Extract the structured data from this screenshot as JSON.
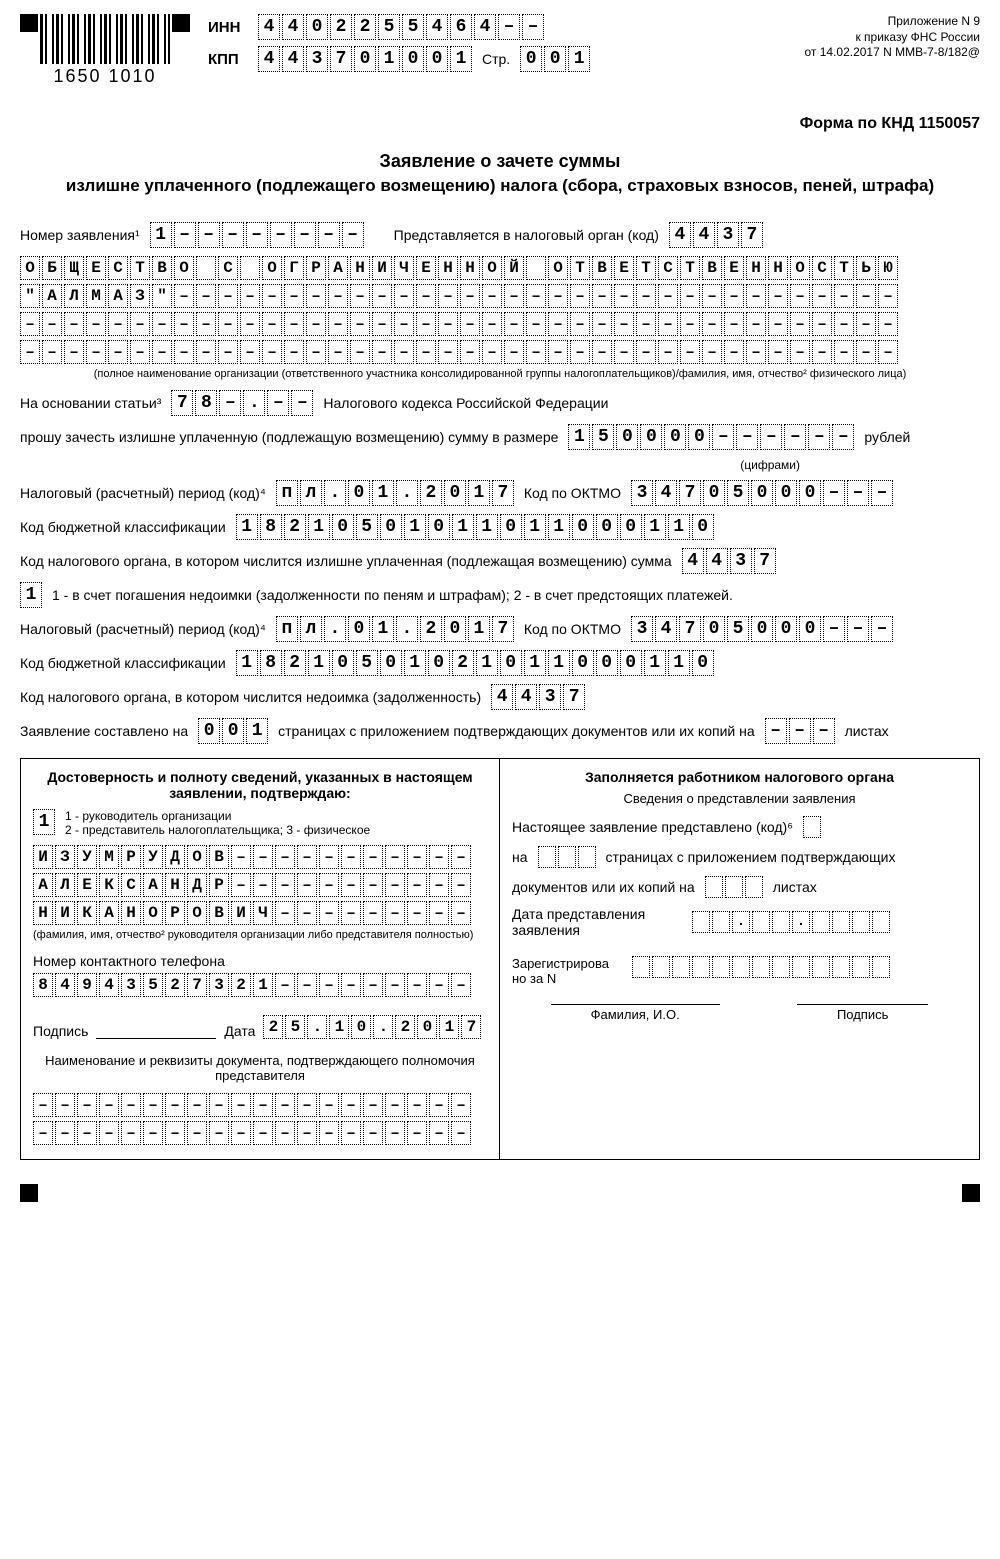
{
  "barcode_numbers": "1650  1010",
  "inn_label": "ИНН",
  "inn": [
    "4",
    "4",
    "0",
    "2",
    "2",
    "5",
    "5",
    "4",
    "6",
    "4",
    "–",
    "–"
  ],
  "kpp_label": "КПП",
  "kpp": [
    "4",
    "4",
    "3",
    "7",
    "0",
    "1",
    "0",
    "0",
    "1"
  ],
  "page_label": "Стр.",
  "page": [
    "0",
    "0",
    "1"
  ],
  "attachment_line1": "Приложение N 9",
  "attachment_line2": "к приказу ФНС России",
  "attachment_line3": "от 14.02.2017 N ММВ-7-8/182@",
  "form_code": "Форма по КНД 1150057",
  "title1": "Заявление о зачете суммы",
  "title2": "излишне уплаченного (подлежащего возмещению) налога (сбора, страховых взносов, пеней, штрафа)",
  "app_num_label": "Номер заявления¹",
  "app_num": [
    "1",
    "–",
    "–",
    "–",
    "–",
    "–",
    "–",
    "–",
    "–"
  ],
  "tax_organ_label": "Представляется в налоговый орган (код)",
  "tax_organ": [
    "4",
    "4",
    "3",
    "7"
  ],
  "org_name_1": [
    "О",
    "Б",
    "Щ",
    "Е",
    "С",
    "Т",
    "В",
    "О",
    " ",
    "С",
    " ",
    "О",
    "Г",
    "Р",
    "А",
    "Н",
    "И",
    "Ч",
    "Е",
    "Н",
    "Н",
    "О",
    "Й",
    " ",
    "О",
    "Т",
    "В",
    "Е",
    "Т",
    "С",
    "Т",
    "В",
    "Е",
    "Н",
    "Н",
    "О",
    "С",
    "Т",
    "Ь",
    "Ю"
  ],
  "org_name_2": [
    "\"",
    "А",
    "Л",
    "М",
    "А",
    "З",
    "\"",
    "–",
    "–",
    "–",
    "–",
    "–",
    "–",
    "–",
    "–",
    "–",
    "–",
    "–",
    "–",
    "–",
    "–",
    "–",
    "–",
    "–",
    "–",
    "–",
    "–",
    "–",
    "–",
    "–",
    "–",
    "–",
    "–",
    "–",
    "–",
    "–",
    "–",
    "–",
    "–",
    "–"
  ],
  "org_name_3_dashes": 40,
  "org_name_4_dashes": 40,
  "org_note": "(полное наименование организации (ответственного участника консолидированной группы налогоплательщиков)/фамилия, имя, отчество² физического лица)",
  "article_label": "На основании статьи³",
  "article": [
    "7",
    "8",
    "–",
    ".",
    "–",
    "–"
  ],
  "article_suffix": "Налогового кодекса Российской Федерации",
  "request_label": "прошу зачесть излишне уплаченную (подлежащую возмещению) сумму в размере",
  "amount": [
    "1",
    "5",
    "0",
    "0",
    "0",
    "0",
    "–",
    "–",
    "–",
    "–",
    "–",
    "–"
  ],
  "rubles": "рублей",
  "digits_note": "(цифрами)",
  "period_label": "Налоговый (расчетный) период (код)⁴",
  "period1": [
    "п",
    "л",
    ".",
    "0",
    "1",
    ".",
    "2",
    "0",
    "1",
    "7"
  ],
  "oktmo_label": "Код по ОКТМО",
  "oktmo1": [
    "3",
    "4",
    "7",
    "0",
    "5",
    "0",
    "0",
    "0",
    "–",
    "–",
    "–"
  ],
  "kbk_label": "Код бюджетной классификации",
  "kbk1": [
    "1",
    "8",
    "2",
    "1",
    "0",
    "5",
    "0",
    "1",
    "0",
    "1",
    "1",
    "0",
    "1",
    "1",
    "0",
    "0",
    "0",
    "1",
    "1",
    "0"
  ],
  "organ_overpay_label": "Код налогового органа, в котором числится излишне уплаченная (подлежащая возмещению) сумма",
  "organ_overpay": [
    "4",
    "4",
    "3",
    "7"
  ],
  "purpose_code": [
    "1"
  ],
  "purpose_text": "1 - в счет погашения недоимки (задолженности по пеням и штрафам);   2 - в счет предстоящих платежей.",
  "period2": [
    "п",
    "л",
    ".",
    "0",
    "1",
    ".",
    "2",
    "0",
    "1",
    "7"
  ],
  "oktmo2": [
    "3",
    "4",
    "7",
    "0",
    "5",
    "0",
    "0",
    "0",
    "–",
    "–",
    "–"
  ],
  "kbk2": [
    "1",
    "8",
    "2",
    "1",
    "0",
    "5",
    "0",
    "1",
    "0",
    "2",
    "1",
    "0",
    "1",
    "1",
    "0",
    "0",
    "0",
    "1",
    "1",
    "0"
  ],
  "organ_debt_label": "Код налогового органа, в котором числится недоимка (задолженность)",
  "organ_debt": [
    "4",
    "4",
    "3",
    "7"
  ],
  "pages_label_a": "Заявление составлено на",
  "pages": [
    "0",
    "0",
    "1"
  ],
  "pages_label_b": "страницах с приложением подтверждающих документов или их копий на",
  "sheets": [
    "–",
    "–",
    "–"
  ],
  "sheets_suffix": "листах",
  "left_heading": "Достоверность и полноту сведений, указанных в настоящем заявлении, подтверждаю:",
  "confirm_code": [
    "1"
  ],
  "confirm_legend": "1 - руководитель организации\n2 - представитель налогоплательщика; 3 - физическое",
  "fio1": [
    "И",
    "З",
    "У",
    "М",
    "Р",
    "У",
    "Д",
    "О",
    "В",
    "–",
    "–",
    "–",
    "–",
    "–",
    "–",
    "–",
    "–",
    "–",
    "–",
    "–"
  ],
  "fio2": [
    "А",
    "Л",
    "Е",
    "К",
    "С",
    "А",
    "Н",
    "Д",
    "Р",
    "–",
    "–",
    "–",
    "–",
    "–",
    "–",
    "–",
    "–",
    "–",
    "–",
    "–"
  ],
  "fio3": [
    "Н",
    "И",
    "К",
    "А",
    "Н",
    "О",
    "Р",
    "О",
    "В",
    "И",
    "Ч",
    "–",
    "–",
    "–",
    "–",
    "–",
    "–",
    "–",
    "–",
    "–"
  ],
  "fio_note": "(фамилия, имя, отчество² руководителя организации либо представителя полностью)",
  "phone_label": "Номер контактного телефона",
  "phone": [
    "8",
    "4",
    "9",
    "4",
    "3",
    "5",
    "2",
    "7",
    "3",
    "2",
    "1",
    "–",
    "–",
    "–",
    "–",
    "–",
    "–",
    "–",
    "–",
    "–"
  ],
  "sign_label": "Подпись",
  "date_label": "Дата",
  "date": [
    "2",
    "5",
    ".",
    "1",
    "0",
    ".",
    "2",
    "0",
    "1",
    "7"
  ],
  "doc_proof_h": "Наименование и реквизиты документа, подтверждающего полномочия представителя",
  "doc_proof_dashes": 20,
  "right_heading": "Заполняется работником налогового органа",
  "right_sub": "Сведения о представлении заявления",
  "right_present_label": "Настоящее заявление представлено (код)⁶",
  "right_present": [
    " "
  ],
  "right_on": "на",
  "right_pages": [
    " ",
    " ",
    " "
  ],
  "right_pages_suffix": "страницах с приложением подтверждающих",
  "right_docs_label": "документов или их копий на",
  "right_docs": [
    " ",
    " ",
    " "
  ],
  "right_docs_suffix": "листах",
  "right_date_label": "Дата представления заявления",
  "right_date": [
    " ",
    " ",
    ".",
    " ",
    " ",
    ".",
    " ",
    " ",
    " ",
    " "
  ],
  "right_reg_label": "Зарегистрирова\nно за N",
  "right_reg": [
    " ",
    " ",
    " ",
    " ",
    " ",
    " ",
    " ",
    " ",
    " ",
    " ",
    " ",
    " ",
    " "
  ],
  "right_sig1": "Фамилия, И.О.",
  "right_sig2": "Подпись"
}
